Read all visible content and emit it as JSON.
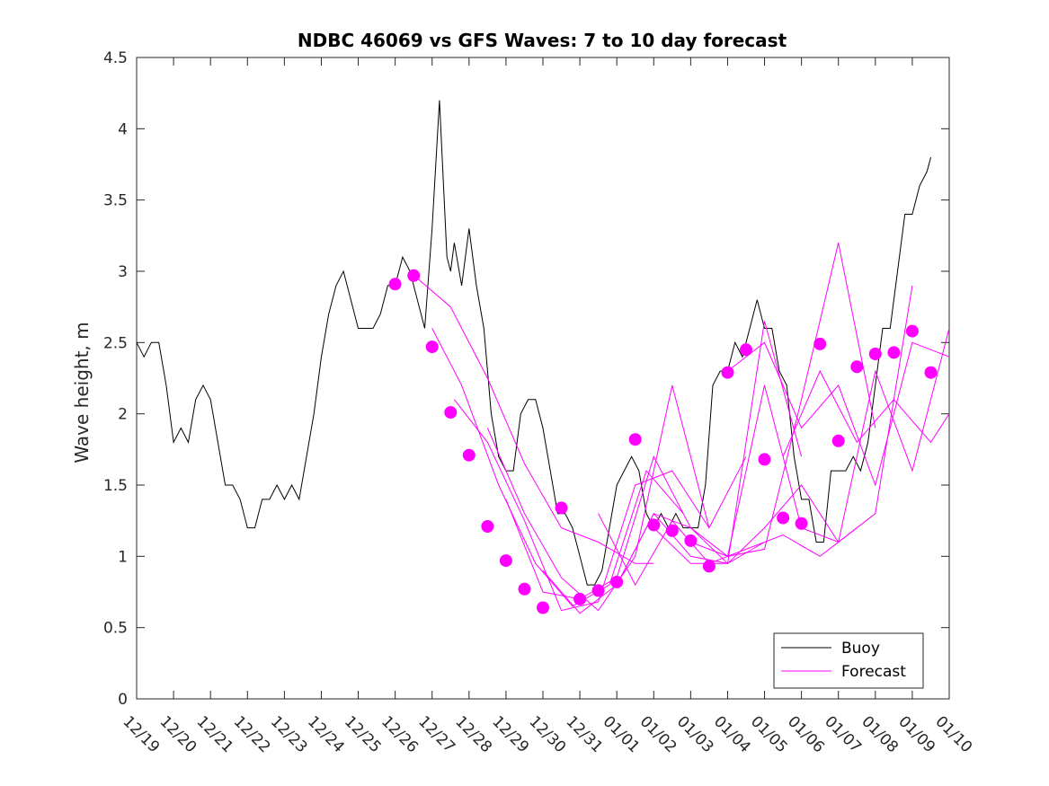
{
  "chart_data": {
    "type": "line",
    "title": "NDBC 46069 vs GFS Waves: 7 to 10 day forecast",
    "xlabel": "",
    "ylabel": "Wave height, m",
    "x_unit": "days since 12/19",
    "xlim": [
      0,
      22
    ],
    "ylim": [
      0,
      4.5
    ],
    "x_ticks": [
      {
        "x": 0,
        "label": "12/19"
      },
      {
        "x": 1,
        "label": "12/20"
      },
      {
        "x": 2,
        "label": "12/21"
      },
      {
        "x": 3,
        "label": "12/22"
      },
      {
        "x": 4,
        "label": "12/23"
      },
      {
        "x": 5,
        "label": "12/24"
      },
      {
        "x": 6,
        "label": "12/25"
      },
      {
        "x": 7,
        "label": "12/26"
      },
      {
        "x": 8,
        "label": "12/27"
      },
      {
        "x": 9,
        "label": "12/28"
      },
      {
        "x": 10,
        "label": "12/29"
      },
      {
        "x": 11,
        "label": "12/30"
      },
      {
        "x": 12,
        "label": "12/31"
      },
      {
        "x": 13,
        "label": "01/01"
      },
      {
        "x": 14,
        "label": "01/02"
      },
      {
        "x": 15,
        "label": "01/03"
      },
      {
        "x": 16,
        "label": "01/04"
      },
      {
        "x": 17,
        "label": "01/05"
      },
      {
        "x": 18,
        "label": "01/06"
      },
      {
        "x": 19,
        "label": "01/07"
      },
      {
        "x": 20,
        "label": "01/08"
      },
      {
        "x": 21,
        "label": "01/09"
      },
      {
        "x": 22,
        "label": "01/10"
      }
    ],
    "y_ticks": [
      0,
      0.5,
      1,
      1.5,
      2,
      2.5,
      3,
      3.5,
      4,
      4.5
    ],
    "y_tick_labels": [
      "0",
      "0.5",
      "1",
      "1.5",
      "2",
      "2.5",
      "3",
      "3.5",
      "4",
      "4.5"
    ],
    "legend": {
      "position": "bottom-right",
      "entries": [
        "Buoy",
        "Forecast"
      ]
    },
    "series": [
      {
        "name": "Buoy",
        "color": "#000000",
        "x": [
          0,
          0.2,
          0.4,
          0.6,
          0.8,
          1.0,
          1.2,
          1.4,
          1.6,
          1.8,
          2.0,
          2.2,
          2.4,
          2.6,
          2.8,
          3.0,
          3.2,
          3.4,
          3.6,
          3.8,
          4.0,
          4.2,
          4.4,
          4.6,
          4.8,
          5.0,
          5.2,
          5.4,
          5.6,
          5.8,
          6.0,
          6.2,
          6.4,
          6.6,
          6.8,
          7.0,
          7.2,
          7.4,
          7.6,
          7.8,
          8.0,
          8.2,
          8.4,
          8.5,
          8.6,
          8.8,
          9.0,
          9.2,
          9.4,
          9.6,
          9.8,
          10.0,
          10.2,
          10.4,
          10.6,
          10.8,
          11.0,
          11.2,
          11.4,
          11.6,
          11.8,
          12.0,
          12.2,
          12.4,
          12.6,
          12.8,
          13.0,
          13.2,
          13.4,
          13.6,
          13.8,
          14.0,
          14.2,
          14.4,
          14.6,
          14.8,
          15.0,
          15.2,
          15.4,
          15.6,
          15.8,
          16.0,
          16.2,
          16.4,
          16.6,
          16.8,
          17.0,
          17.2,
          17.4,
          17.6,
          17.8,
          18.0,
          18.2,
          18.4,
          18.6,
          18.8,
          19.0,
          19.2,
          19.4,
          19.6,
          19.8,
          20.0,
          20.2,
          20.4,
          20.6,
          20.8,
          21.0,
          21.2,
          21.4,
          21.5
        ],
        "y": [
          2.5,
          2.4,
          2.5,
          2.5,
          2.2,
          1.8,
          1.9,
          1.8,
          2.1,
          2.2,
          2.1,
          1.8,
          1.5,
          1.5,
          1.4,
          1.2,
          1.2,
          1.4,
          1.4,
          1.5,
          1.4,
          1.5,
          1.4,
          1.7,
          2.0,
          2.4,
          2.7,
          2.9,
          3.0,
          2.8,
          2.6,
          2.6,
          2.6,
          2.7,
          2.9,
          2.9,
          3.1,
          3.0,
          2.8,
          2.6,
          3.3,
          4.2,
          3.1,
          3.0,
          3.2,
          2.9,
          3.3,
          2.9,
          2.6,
          2.0,
          1.7,
          1.6,
          1.6,
          2.0,
          2.1,
          2.1,
          1.9,
          1.6,
          1.3,
          1.3,
          1.2,
          1.0,
          0.8,
          0.8,
          0.9,
          1.2,
          1.5,
          1.6,
          1.7,
          1.6,
          1.3,
          1.2,
          1.3,
          1.2,
          1.3,
          1.2,
          1.2,
          1.2,
          1.5,
          2.2,
          2.3,
          2.3,
          2.5,
          2.4,
          2.6,
          2.8,
          2.6,
          2.6,
          2.3,
          2.2,
          1.7,
          1.4,
          1.4,
          1.1,
          1.1,
          1.6,
          1.6,
          1.6,
          1.7,
          1.6,
          1.8,
          2.2,
          2.6,
          2.6,
          3.0,
          3.4,
          3.4,
          3.6,
          3.7,
          3.8
        ]
      },
      {
        "name": "Forecast",
        "color": "#ff00ff",
        "runs": [
          {
            "x": [
              7.6,
              8.5,
              9.5,
              10.5,
              11.5,
              12.5,
              13.5,
              14.0
            ],
            "y": [
              2.95,
              2.75,
              2.25,
              1.65,
              1.2,
              1.1,
              0.95,
              0.95
            ]
          },
          {
            "x": [
              8.0,
              8.8,
              9.8,
              10.8,
              11.8,
              12.8,
              13.8,
              14.8
            ],
            "y": [
              2.6,
              2.2,
              1.5,
              0.95,
              0.65,
              0.8,
              1.6,
              1.3
            ]
          },
          {
            "x": [
              8.6,
              9.5,
              10.5,
              11.5,
              12.5,
              13.5,
              14.5,
              15.5
            ],
            "y": [
              2.1,
              1.8,
              1.25,
              0.62,
              0.68,
              1.5,
              1.6,
              1.2
            ]
          },
          {
            "x": [
              9.5,
              10.5,
              11.5,
              12.5,
              13.5,
              14.5,
              15.5,
              16.5
            ],
            "y": [
              1.9,
              1.3,
              0.85,
              0.62,
              1.0,
              2.2,
              1.2,
              1.7
            ]
          },
          {
            "x": [
              10.0,
              11.0,
              12.0,
              13.0,
              14.0,
              15.0,
              16.0,
              17.0
            ],
            "y": [
              1.4,
              0.75,
              0.7,
              0.85,
              1.7,
              1.2,
              0.95,
              1.1
            ]
          },
          {
            "x": [
              11.0,
              12.0,
              13.0,
              14.0,
              15.0,
              16.0,
              17.0,
              18.0
            ],
            "y": [
              0.9,
              0.6,
              0.8,
              1.3,
              1.0,
              0.95,
              2.65,
              1.7
            ]
          },
          {
            "x": [
              12.5,
              13.5,
              14.5,
              15.5,
              16.5,
              17.5,
              18.5,
              19.5
            ],
            "y": [
              1.3,
              0.8,
              1.25,
              0.95,
              1.05,
              1.15,
              1.0,
              1.2
            ]
          },
          {
            "x": [
              13.0,
              14.0,
              15.0,
              16.0,
              17.0,
              18.0,
              19.0,
              20.0
            ],
            "y": [
              0.8,
              1.3,
              1.2,
              1.0,
              1.05,
              2.1,
              3.2,
              1.9
            ]
          },
          {
            "x": [
              14.0,
              15.0,
              16.0,
              17.0,
              18.0,
              19.0,
              20.0,
              21.0
            ],
            "y": [
              1.2,
              0.95,
              0.95,
              1.2,
              1.5,
              1.1,
              1.3,
              2.9
            ]
          },
          {
            "x": [
              15.0,
              16.0,
              17.0,
              18.0,
              19.0,
              20.0,
              21.0,
              22.0
            ],
            "y": [
              1.1,
              1.0,
              2.2,
              1.2,
              1.1,
              2.3,
              1.6,
              2.6
            ]
          },
          {
            "x": [
              16.0,
              17.0,
              18.0,
              19.0,
              20.0,
              21.0,
              22.0
            ],
            "y": [
              2.3,
              2.5,
              1.9,
              2.2,
              1.5,
              2.5,
              2.4
            ]
          },
          {
            "x": [
              17.5,
              18.5,
              19.5,
              20.5,
              21.5,
              22.0
            ],
            "y": [
              1.7,
              2.3,
              1.8,
              2.1,
              1.8,
              2.0
            ]
          }
        ],
        "markers": {
          "x": [
            7.0,
            7.5,
            8.0,
            8.5,
            9.0,
            9.5,
            10.0,
            10.5,
            11.0,
            11.5,
            12.0,
            12.5,
            13.0,
            13.5,
            14.0,
            14.5,
            15.0,
            15.5,
            16.0,
            16.5,
            17.0,
            17.5,
            18.0,
            18.5,
            19.0,
            19.5,
            20.0,
            20.5,
            21.0,
            21.5
          ],
          "y": [
            2.91,
            2.97,
            2.47,
            2.01,
            1.71,
            1.21,
            0.97,
            0.77,
            0.64,
            1.34,
            0.7,
            0.76,
            0.82,
            1.82,
            1.22,
            1.18,
            1.11,
            0.93,
            2.29,
            2.45,
            1.68,
            1.27,
            1.23,
            2.49,
            1.81,
            2.33,
            2.42,
            2.43,
            2.58,
            2.29
          ]
        }
      }
    ]
  }
}
